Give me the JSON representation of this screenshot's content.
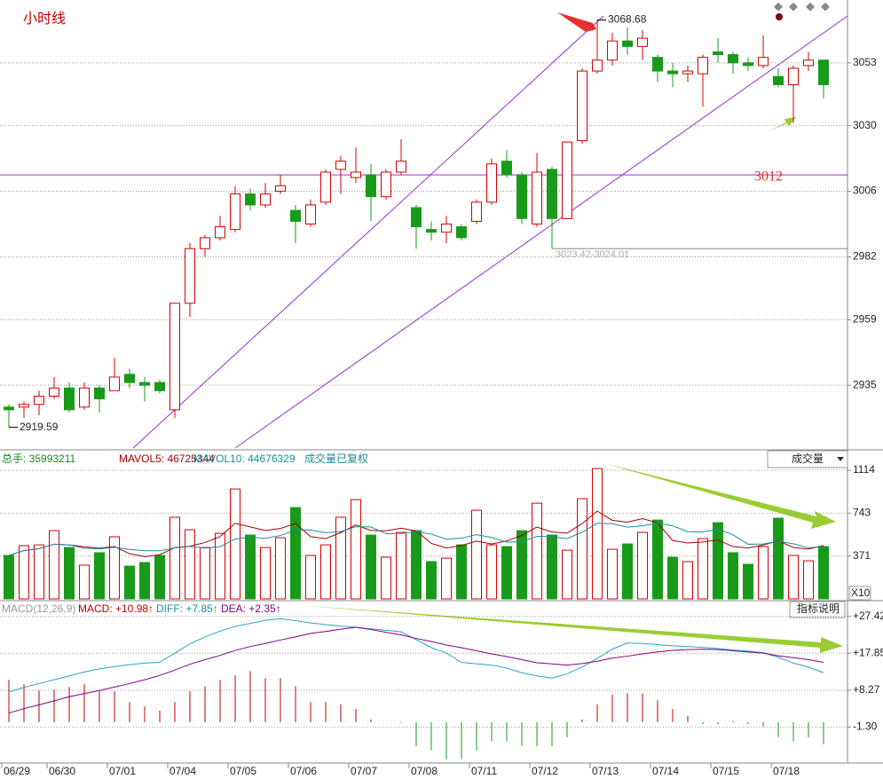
{
  "title": "小时线",
  "chart_data": [
    {
      "type": "candlestick",
      "open": [
        2927,
        2927,
        2928,
        2931,
        2934,
        2927,
        2934,
        2933,
        2939,
        2936,
        2936,
        2926,
        2965,
        2985,
        2989,
        2992,
        3005,
        3001,
        3006,
        2999,
        2994,
        3002,
        3014,
        3011,
        3012,
        3004,
        3013,
        3000,
        2992,
        2991,
        2993,
        2995,
        3002,
        3017,
        3012,
        2994,
        3014,
        2996,
        3024.5,
        3050,
        3054,
        3061,
        3059,
        3055,
        3050,
        3049,
        3049,
        3057,
        3056,
        3053,
        3052,
        3048,
        3045,
        3052,
        3054
      ],
      "high": [
        2928,
        2929,
        2933,
        2938,
        2936,
        2936,
        2935,
        2945,
        2941,
        2938,
        2937,
        2965,
        2987,
        2990,
        2997,
        3008,
        3007,
        3009,
        3012,
        3001,
        3003,
        3014,
        3019,
        3022,
        3016,
        3014,
        3025,
        3001,
        2995,
        2997,
        2994,
        3003,
        3018,
        3021,
        3013,
        3020,
        3015,
        3024,
        3051,
        3068.68,
        3064,
        3066,
        3065,
        3056,
        3053,
        3052,
        3056,
        3062,
        3057,
        3055,
        3063,
        3051,
        3052,
        3057,
        3054
      ],
      "low": [
        2919.59,
        2923,
        2924,
        2930,
        2925,
        2926,
        2925,
        2933,
        2934,
        2929,
        2932,
        2923,
        2960,
        2982,
        2988,
        2991,
        2999,
        3000,
        3005,
        2987,
        2993,
        3001,
        3005,
        3009,
        2995,
        3003,
        3012,
        2985,
        2988,
        2987,
        2988,
        2994,
        3001,
        3011,
        2994,
        2993,
        2985,
        2996,
        3023.42,
        3049,
        3052,
        3056,
        3054,
        3046,
        3044,
        3046,
        3037,
        3053,
        3049,
        3050,
        3051,
        3044,
        3031,
        3050,
        3040
      ],
      "close": [
        2926,
        2928,
        2931,
        2934,
        2926,
        2934,
        2930,
        2938,
        2936,
        2935,
        2933,
        2965,
        2985,
        2989,
        2993,
        3005,
        3001,
        3005,
        3008,
        2995,
        3001,
        3013,
        3017,
        3013,
        3004,
        3013,
        3017,
        2993,
        2991,
        2994,
        2989,
        3002,
        3016,
        3012,
        2996,
        3013,
        2996,
        3024,
        3050,
        3054,
        3061,
        3059,
        3062,
        3050,
        3049,
        3050,
        3055,
        3056,
        3053,
        3052,
        3055,
        3045,
        3051,
        3054,
        3045
      ],
      "ylim": [
        2912,
        3076
      ],
      "yticks": [
        2935,
        2959,
        2982,
        3006,
        3030,
        3053
      ],
      "up_color": "#d40000",
      "down_color": "#1a9a1a",
      "grid": true,
      "level": 3012,
      "range_label": "3023.42-3024.01"
    },
    {
      "type": "bar",
      "legend": {
        "total": "总手: 35993211",
        "ma5": "MAVOL5: 46725344",
        "ma10": "MAVOL10: 44676329",
        "note": "成交量已复权"
      },
      "selector": "成交量",
      "unit": "X10",
      "values": [
        376,
        461,
        468,
        591,
        445,
        292,
        400,
        538,
        284,
        315,
        376,
        707,
        599,
        445,
        568,
        952,
        553,
        445,
        530,
        791,
        376,
        468,
        707,
        860,
        553,
        361,
        576,
        591,
        323,
        353,
        468,
        768,
        468,
        453,
        591,
        829,
        553,
        422,
        868,
        1129,
        430,
        476,
        576,
        683,
        361,
        323,
        522,
        660,
        400,
        300,
        453,
        699,
        376,
        330,
        453
      ],
      "ylim": [
        0,
        1268
      ],
      "yticks": [
        1114,
        743,
        371
      ]
    },
    {
      "type": "macd",
      "legend": {
        "name": "MACD(12,26,9)",
        "macd": "MACD: +10.98↑",
        "diff": "DIFF: +7.85↑",
        "dea": "DEA: +2.35↑"
      },
      "button": "指标说明",
      "macd": [
        10.98,
        9.8,
        8.2,
        8.4,
        9.1,
        9.8,
        8.0,
        8.0,
        5.2,
        4.1,
        3.0,
        5.2,
        8.0,
        9.3,
        10.9,
        12.1,
        13.2,
        11.4,
        11.4,
        9.3,
        5.2,
        5.2,
        4.6,
        3.4,
        0.7,
        0,
        -0.2,
        -6.2,
        -7.3,
        -9.6,
        -9.6,
        -7.3,
        -5.0,
        -5.0,
        -6.2,
        -6.2,
        -6.2,
        -3.9,
        0.7,
        4.6,
        7.1,
        7.5,
        7.5,
        5.7,
        3.4,
        1.6,
        -0.5,
        -0.5,
        0.2,
        -0.5,
        -1.1,
        -3.9,
        -5.0,
        -3.9,
        -5.7
      ],
      "diff": [
        7.85,
        9.0,
        10.0,
        11.0,
        12.0,
        13.0,
        13.8,
        14.4,
        14.9,
        15.3,
        15.5,
        17.9,
        20.3,
        22.1,
        23.6,
        24.8,
        25.6,
        26.4,
        26.8,
        26.3,
        25.7,
        25.3,
        24.9,
        24.6,
        24.2,
        23.8,
        23.4,
        21.4,
        19.3,
        17.9,
        15.5,
        15.1,
        14.8,
        14.0,
        12.8,
        12.0,
        11.4,
        12.5,
        14.3,
        16.5,
        18.9,
        20.5,
        20.4,
        20.1,
        19.8,
        19.6,
        19.4,
        19.1,
        18.7,
        18.4,
        18.0,
        16.8,
        15.3,
        14.3,
        12.8
      ],
      "dea": [
        2.35,
        3.5,
        4.5,
        5.5,
        6.6,
        7.4,
        8.2,
        9.1,
        10.0,
        11.0,
        12.1,
        13.5,
        15.0,
        16.2,
        17.3,
        18.6,
        19.6,
        20.4,
        21.3,
        22.1,
        23.0,
        23.5,
        24.1,
        24.6,
        24.0,
        23.3,
        22.6,
        21.7,
        20.9,
        20.0,
        19.3,
        18.5,
        17.7,
        17.0,
        16.2,
        15.4,
        15.1,
        14.8,
        15.2,
        15.8,
        16.6,
        17.1,
        17.7,
        18.2,
        18.6,
        18.8,
        18.9,
        18.8,
        18.5,
        18.2,
        17.9,
        17.2,
        16.7,
        16.2,
        15.5
      ],
      "ylim": [
        -10.6,
        30.8
      ],
      "yticks": [
        {
          "value": 27.42,
          "label": "+27.42"
        },
        {
          "value": 17.85,
          "label": "+17.85"
        },
        {
          "value": 8.27,
          "label": "+8.27"
        },
        {
          "value": -1.3,
          "label": "-1.30"
        }
      ]
    }
  ],
  "x_axis": {
    "labels": [
      "06/29",
      "06/30",
      "07/01",
      "07/04",
      "07/05",
      "07/06",
      "07/07",
      "07/08",
      "07/11",
      "07/12",
      "07/13",
      "07/14",
      "07/15",
      "07/18"
    ]
  }
}
